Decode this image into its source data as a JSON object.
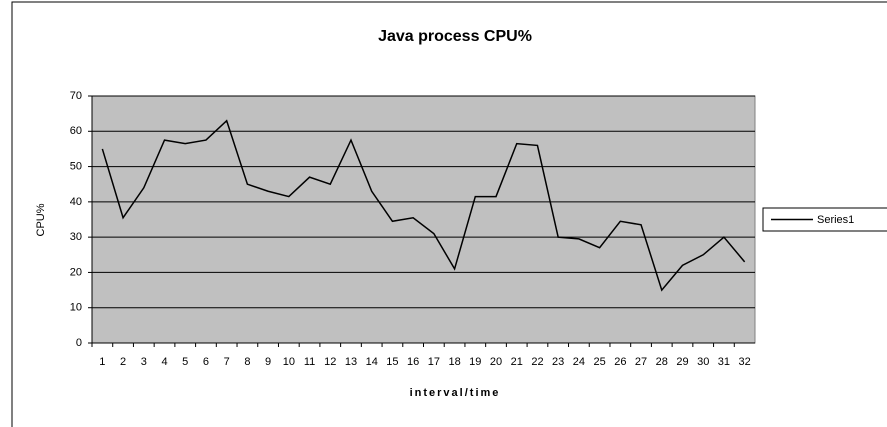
{
  "chart_data": {
    "type": "line",
    "title": "Java process CPU%",
    "x_label": "interval/time",
    "y_label": "CPU%",
    "categories": [
      "1",
      "2",
      "3",
      "4",
      "5",
      "6",
      "7",
      "8",
      "9",
      "10",
      "11",
      "12",
      "13",
      "14",
      "15",
      "16",
      "17",
      "18",
      "19",
      "20",
      "21",
      "22",
      "23",
      "24",
      "25",
      "26",
      "27",
      "28",
      "29",
      "30",
      "31",
      "32"
    ],
    "series": [
      {
        "name": "Series1",
        "color": "#000000",
        "values": [
          55,
          35.5,
          44,
          57.5,
          56.5,
          57.5,
          63,
          45,
          43,
          41.5,
          47,
          45,
          57.5,
          43,
          34.5,
          35.5,
          31,
          21,
          41.5,
          41.5,
          56.5,
          56,
          30,
          29.5,
          27,
          34.5,
          33.5,
          15,
          22,
          25,
          30,
          23
        ]
      }
    ],
    "ylim": [
      0,
      70
    ],
    "yticks": [
      0,
      10,
      20,
      30,
      40,
      50,
      60,
      70
    ],
    "grid": true,
    "legend": "right"
  }
}
